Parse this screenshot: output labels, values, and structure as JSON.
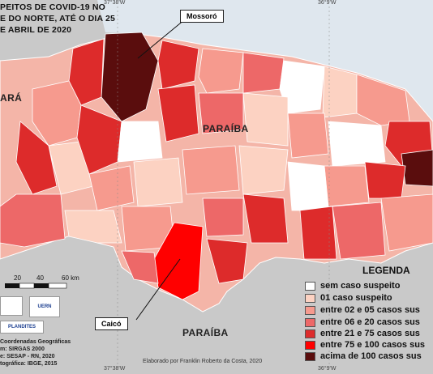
{
  "title_lines": [
    "PEITOS DE COVID-19 NO",
    "E DO NORTE, ATÉ O DIA 25",
    "E ABRIL DE 2020"
  ],
  "coords": {
    "top_left": "37°38'W",
    "top_right": "36°9'W",
    "bottom_left": "37°38'W",
    "bottom_right": "36°9'W"
  },
  "states": {
    "ceara": "ARÁ",
    "paraiba_right": "PARAÍBA",
    "paraiba_bottom": "PARAÍBA"
  },
  "callouts": {
    "mossoro": "Mossoró",
    "caico": "Caicó"
  },
  "scale_bar": {
    "labels": [
      "20",
      "40",
      "60 km"
    ]
  },
  "legend": {
    "title": "LEGENDA",
    "items": [
      {
        "label": "sem caso suspeito",
        "color": "#ffffff"
      },
      {
        "label": "01 caso suspeito",
        "color": "#fcd2c2"
      },
      {
        "label": "entre 02 e 05 casos sus",
        "color": "#f69a8e"
      },
      {
        "label": "entre 06 e 20 casos sus",
        "color": "#ed6868"
      },
      {
        "label": "entre 21 e 75 casos sus",
        "color": "#dd2b2b"
      },
      {
        "label": "entre 75 e 100 casos sus",
        "color": "#ff0000"
      },
      {
        "label": "acima de 100 casos sus",
        "color": "#5a0d0d"
      }
    ]
  },
  "logos": {
    "uern": "UERN",
    "plandites": "PLANDITES"
  },
  "credit": "Elaborado por Franklin Roberto da Costa, 2020",
  "meta_lines": [
    "Coordenadas Geográficas",
    "m: SIRGAS 2000",
    "e: SESAP - RN, 2020",
    "tográfica: IBGE, 2015"
  ]
}
